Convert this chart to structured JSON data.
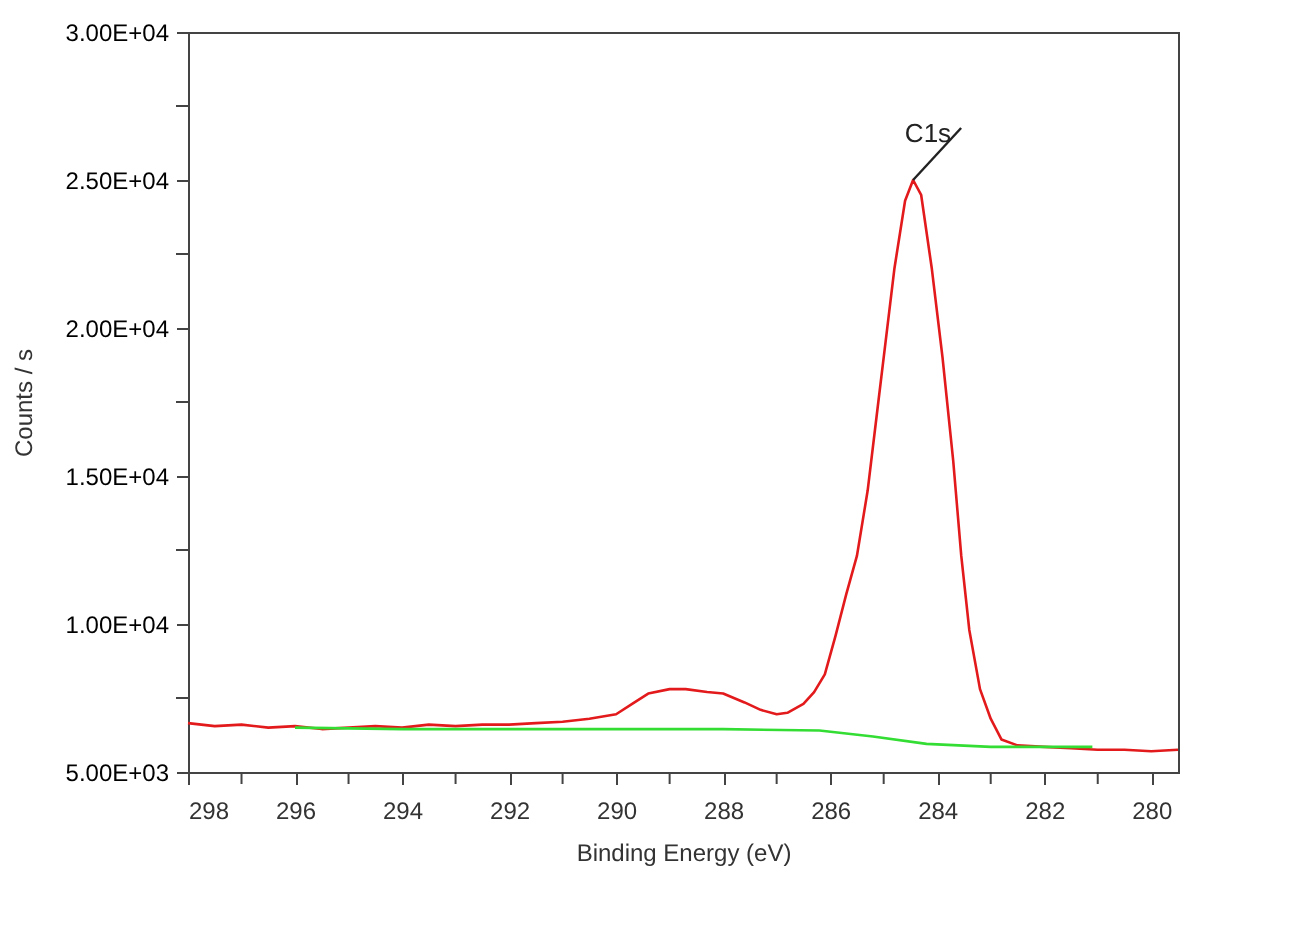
{
  "chart_data": {
    "type": "line",
    "xlabel": "Binding Energy (eV)",
    "ylabel": "Counts / s",
    "xlim": [
      298,
      279.5
    ],
    "xticks": [
      298,
      {
        "value": 297,
        "label": null
      },
      296,
      {
        "value": 295,
        "label": null
      },
      294,
      {
        "value": 293,
        "label": null
      },
      292,
      {
        "value": 291,
        "label": null
      },
      290,
      {
        "value": 289,
        "label": null
      },
      288,
      {
        "value": 287,
        "label": null
      },
      286,
      {
        "value": 285,
        "label": null
      },
      284,
      {
        "value": 283,
        "label": null
      },
      282,
      {
        "value": 281,
        "label": null
      },
      280
    ],
    "ylim": [
      5000,
      30000
    ],
    "yticks": [
      {
        "value": 5000,
        "label": "5.00E+03"
      },
      {
        "value": 7500,
        "label": null
      },
      {
        "value": 10000,
        "label": "1.00E+04"
      },
      {
        "value": 12500,
        "label": null
      },
      {
        "value": 15000,
        "label": "1.50E+04"
      },
      {
        "value": 17500,
        "label": null
      },
      {
        "value": 20000,
        "label": "2.00E+04"
      },
      {
        "value": 22500,
        "label": null
      },
      {
        "value": 25000,
        "label": "2.50E+04"
      },
      {
        "value": 27500,
        "label": null
      },
      {
        "value": 30000,
        "label": "3.00E+04"
      }
    ],
    "grid": false,
    "marker": "none",
    "line_style": "solid",
    "annotations": [
      {
        "text": "C1s",
        "x": 284.45,
        "y": 25000
      }
    ],
    "series": [
      {
        "color": "#e31a1c",
        "x": [
          298.0,
          297.5,
          297,
          296.5,
          296,
          295.5,
          295,
          294.5,
          294,
          293.5,
          293,
          292.5,
          292,
          291.5,
          291,
          290.5,
          290,
          289.7,
          289.4,
          289,
          288.7,
          288.3,
          288,
          287.6,
          287.3,
          287,
          286.8,
          286.5,
          286.3,
          286.1,
          285.9,
          285.7,
          285.5,
          285.3,
          285.1,
          285.0,
          284.8,
          284.6,
          284.45,
          284.3,
          284.1,
          283.9,
          283.7,
          283.55,
          283.4,
          283.2,
          283.0,
          282.8,
          282.5,
          282.0,
          281.5,
          281.0,
          280.5,
          280,
          279.5
        ],
        "values": [
          6650,
          6550,
          6600,
          6500,
          6550,
          6450,
          6500,
          6550,
          6500,
          6600,
          6550,
          6600,
          6600,
          6650,
          6700,
          6800,
          6950,
          7300,
          7650,
          7800,
          7800,
          7700,
          7650,
          7350,
          7100,
          6950,
          7000,
          7300,
          7700,
          8300,
          9600,
          11000,
          12300,
          14500,
          17500,
          19000,
          22000,
          24300,
          25000,
          24500,
          22000,
          19000,
          15500,
          12300,
          9800,
          7800,
          6800,
          6100,
          5900,
          5850,
          5800,
          5750,
          5750,
          5700,
          5750
        ]
      },
      {
        "color": "#33dd33",
        "x": [
          296,
          294,
          292,
          290,
          288,
          286.2,
          285.2,
          284.2,
          283,
          282,
          281.1
        ],
        "values": [
          6500,
          6450,
          6450,
          6450,
          6450,
          6400,
          6200,
          5950,
          5850,
          5850,
          5850
        ]
      }
    ]
  }
}
